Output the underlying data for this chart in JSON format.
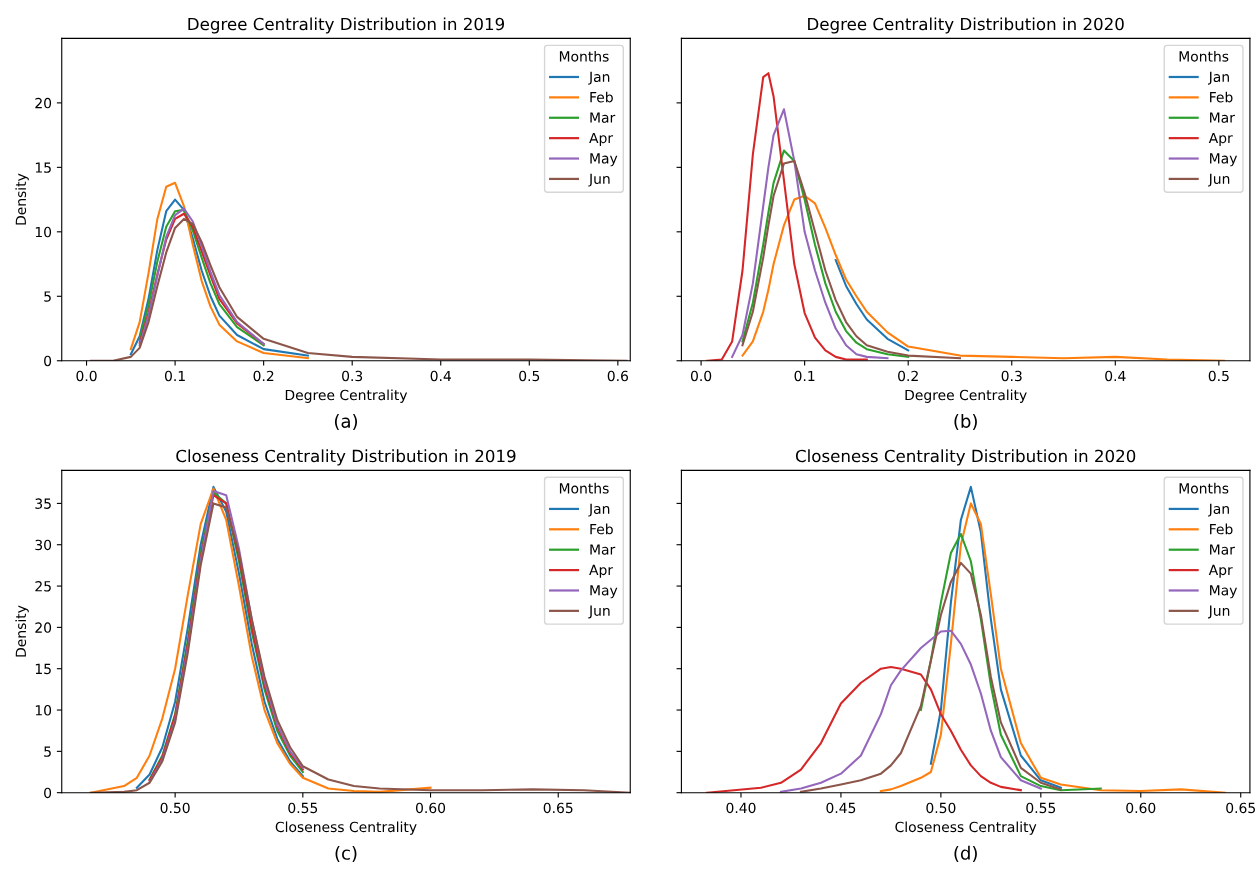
{
  "chart_data": [
    {
      "type": "line",
      "title": "Degree Centrality Distribution in 2019",
      "xlabel": "Degree Centrality",
      "ylabel": "Density",
      "legend_title": "Months",
      "legend": "top right",
      "grid": false,
      "annotations": [
        "(a)"
      ],
      "x": [
        0.005,
        0.03,
        0.05,
        0.06,
        0.07,
        0.08,
        0.09,
        0.1,
        0.11,
        0.12,
        0.13,
        0.14,
        0.15,
        0.17,
        0.2,
        0.25,
        0.3,
        0.4,
        0.5,
        0.61
      ],
      "xlim": [
        -0.028,
        0.614
      ],
      "xticks": [
        {
          "value": 0,
          "label": "0.0"
        },
        0.1,
        0.2,
        0.3,
        0.4,
        0.5,
        0.6
      ],
      "ylim": [
        0,
        25
      ],
      "yticks": [
        0,
        5,
        10,
        15,
        20
      ],
      "series": [
        {
          "name": "Jan",
          "color": "#1f77b4",
          "values": [
            null,
            null,
            0.5,
            1.9,
            4.8,
            8.6,
            11.6,
            12.5,
            11.7,
            9.5,
            7.0,
            5.0,
            3.5,
            2.0,
            0.9,
            0.4,
            null,
            null,
            null,
            null
          ]
        },
        {
          "name": "Feb",
          "color": "#ff7f0e",
          "values": [
            null,
            null,
            0.9,
            3.0,
            6.8,
            11.0,
            13.5,
            13.8,
            12.0,
            9.0,
            6.2,
            4.2,
            2.8,
            1.5,
            0.6,
            0.2,
            null,
            null,
            null,
            null
          ]
        },
        {
          "name": "Mar",
          "color": "#2ca02c",
          "values": [
            null,
            null,
            null,
            1.7,
            4.3,
            7.7,
            10.4,
            11.6,
            11.7,
            10.1,
            8.0,
            6.0,
            4.4,
            2.6,
            1.2,
            null,
            null,
            null,
            null,
            null
          ]
        },
        {
          "name": "Apr",
          "color": "#d62728",
          "values": [
            null,
            null,
            null,
            1.4,
            3.7,
            6.7,
            9.4,
            11.0,
            11.4,
            10.4,
            8.5,
            6.6,
            4.8,
            2.9,
            1.3,
            null,
            null,
            null,
            null,
            null
          ]
        },
        {
          "name": "May",
          "color": "#9467bd",
          "values": [
            null,
            null,
            null,
            1.2,
            3.5,
            6.6,
            9.6,
            11.3,
            11.8,
            10.8,
            8.9,
            6.9,
            5.1,
            3.0,
            1.3,
            null,
            null,
            null,
            null,
            null
          ]
        },
        {
          "name": "Jun",
          "color": "#8c564b",
          "values": [
            0,
            0,
            0.3,
            1.0,
            3.0,
            5.8,
            8.4,
            10.3,
            11.0,
            10.6,
            9.2,
            7.4,
            5.7,
            3.4,
            1.7,
            0.6,
            0.3,
            0.1,
            0.1,
            0
          ]
        }
      ]
    },
    {
      "type": "line",
      "title": "Degree Centrality Distribution in 2020",
      "xlabel": "Degree Centrality",
      "legend_title": "Months",
      "legend": "top right",
      "grid": false,
      "annotations": [
        "(b)"
      ],
      "tick_labels": "x",
      "x": [
        0.006,
        0.02,
        0.03,
        0.04,
        0.05,
        0.06,
        0.065,
        0.07,
        0.08,
        0.09,
        0.1,
        0.11,
        0.12,
        0.13,
        0.14,
        0.15,
        0.16,
        0.18,
        0.2,
        0.25,
        0.3,
        0.35,
        0.4,
        0.45,
        0.505
      ],
      "xlim": [
        -0.019,
        0.53
      ],
      "xticks": [
        {
          "value": 0,
          "label": "0.0"
        },
        0.1,
        0.2,
        0.3,
        0.4,
        0.5
      ],
      "ylim": [
        0,
        25
      ],
      "yticks": [
        0,
        5,
        10,
        15,
        20
      ],
      "series": [
        {
          "name": "Jan",
          "color": "#1f77b4",
          "values": [
            null,
            null,
            null,
            null,
            null,
            null,
            null,
            null,
            null,
            null,
            null,
            null,
            null,
            7.8,
            5.8,
            4.4,
            3.2,
            1.7,
            0.8,
            null,
            null,
            null,
            null,
            null,
            null
          ]
        },
        {
          "name": "Feb",
          "color": "#ff7f0e",
          "values": [
            null,
            null,
            null,
            0.4,
            1.5,
            3.8,
            5.5,
            7.5,
            10.5,
            12.5,
            12.8,
            12.2,
            10.3,
            8.2,
            6.3,
            5.0,
            3.8,
            2.2,
            1.1,
            0.4,
            0.3,
            0.2,
            0.3,
            0.1,
            0
          ]
        },
        {
          "name": "Mar",
          "color": "#2ca02c",
          "values": [
            null,
            null,
            null,
            1.5,
            4.5,
            9.0,
            11.5,
            13.8,
            16.3,
            15.5,
            12.5,
            9.0,
            6.0,
            3.8,
            2.3,
            1.4,
            0.9,
            0.5,
            0.3,
            null,
            null,
            null,
            null,
            null,
            null
          ]
        },
        {
          "name": "Apr",
          "color": "#d62728",
          "values": [
            0,
            0.1,
            1.5,
            7.0,
            16.0,
            22.0,
            22.3,
            20.5,
            14.0,
            7.5,
            3.7,
            1.8,
            0.8,
            0.3,
            0.1,
            0.1,
            0.1,
            null,
            null,
            null,
            null,
            null,
            null,
            null,
            null
          ]
        },
        {
          "name": "May",
          "color": "#9467bd",
          "values": [
            null,
            null,
            0.3,
            2.0,
            6.0,
            12.0,
            15.0,
            17.5,
            19.5,
            15.5,
            10.0,
            7.0,
            4.5,
            2.5,
            1.2,
            0.5,
            0.3,
            0.2,
            null,
            null,
            null,
            null,
            null,
            null,
            null
          ]
        },
        {
          "name": "Jun",
          "color": "#8c564b",
          "values": [
            null,
            null,
            null,
            1.2,
            3.8,
            8.0,
            10.5,
            12.8,
            15.3,
            15.5,
            13.0,
            10.0,
            7.0,
            4.7,
            3.0,
            1.9,
            1.2,
            0.7,
            0.4,
            0.2,
            null,
            null,
            null,
            null,
            null
          ]
        }
      ]
    },
    {
      "type": "line",
      "title": "Closeness Centrality Distribution in 2019",
      "xlabel": "Closeness Centrality",
      "ylabel": "Density",
      "legend_title": "Months",
      "legend": "top right",
      "grid": false,
      "annotations": [
        "(c)"
      ],
      "x": [
        0.467,
        0.48,
        0.485,
        0.49,
        0.495,
        0.5,
        0.505,
        0.51,
        0.515,
        0.52,
        0.525,
        0.53,
        0.535,
        0.54,
        0.545,
        0.55,
        0.56,
        0.57,
        0.58,
        0.6,
        0.62,
        0.64,
        0.66,
        0.678
      ],
      "xlim": [
        0.4556,
        0.6782
      ],
      "xticks": [
        {
          "value": 0.5,
          "label": "0.50"
        },
        {
          "value": 0.55,
          "label": "0.55"
        },
        {
          "value": 0.6,
          "label": "0.60"
        },
        {
          "value": 0.65,
          "label": "0.65"
        }
      ],
      "ylim": [
        0,
        39
      ],
      "yticks": [
        0,
        5,
        10,
        15,
        20,
        25,
        30,
        35
      ],
      "series": [
        {
          "name": "Jan",
          "color": "#1f77b4",
          "values": [
            null,
            null,
            0.6,
            2.2,
            5.5,
            11,
            20,
            30,
            37,
            34,
            26.5,
            18,
            11,
            6.5,
            3.8,
            2.0,
            null,
            null,
            null,
            null,
            null,
            null,
            null,
            null
          ]
        },
        {
          "name": "Feb",
          "color": "#ff7f0e",
          "values": [
            0,
            0.8,
            1.8,
            4.5,
            9,
            15,
            24,
            32.5,
            36.8,
            33,
            25,
            16.5,
            10,
            6,
            3.5,
            1.8,
            0.5,
            0.2,
            0.1,
            0.6,
            null,
            null,
            null,
            null
          ]
        },
        {
          "name": "Mar",
          "color": "#2ca02c",
          "values": [
            null,
            null,
            null,
            1.6,
            4.5,
            9.5,
            18.5,
            29,
            36.3,
            35,
            28,
            19.5,
            12.5,
            7.5,
            4.5,
            2.5,
            null,
            null,
            null,
            null,
            null,
            null,
            null,
            null
          ]
        },
        {
          "name": "Apr",
          "color": "#d62728",
          "values": [
            null,
            null,
            null,
            1.5,
            4.3,
            9.3,
            18,
            28.5,
            36,
            35,
            28.5,
            20,
            13,
            8,
            4.8,
            2.8,
            null,
            null,
            null,
            null,
            null,
            null,
            null,
            null
          ]
        },
        {
          "name": "May",
          "color": "#9467bd",
          "values": [
            null,
            null,
            null,
            1.3,
            4,
            8.8,
            17.5,
            28,
            36.5,
            36,
            29.5,
            21,
            13.5,
            8.2,
            5,
            3,
            null,
            null,
            null,
            null,
            null,
            null,
            null,
            null
          ]
        },
        {
          "name": "Jun",
          "color": "#8c564b",
          "values": [
            0,
            0.1,
            0.3,
            1.2,
            3.8,
            8.5,
            17,
            27.5,
            35,
            34.5,
            29,
            21,
            14,
            8.8,
            5.5,
            3.2,
            1.6,
            0.8,
            0.5,
            0.3,
            0.3,
            0.4,
            0.3,
            0
          ]
        }
      ]
    },
    {
      "type": "line",
      "title": "Closeness Centrality Distribution in 2020",
      "xlabel": "Closeness Centrality",
      "legend_title": "Months",
      "legend": "top right",
      "grid": false,
      "annotations": [
        "(d)"
      ],
      "tick_labels": "x",
      "x": [
        0.383,
        0.41,
        0.42,
        0.43,
        0.44,
        0.45,
        0.46,
        0.47,
        0.475,
        0.48,
        0.49,
        0.495,
        0.5,
        0.505,
        0.51,
        0.515,
        0.52,
        0.525,
        0.53,
        0.54,
        0.55,
        0.56,
        0.58,
        0.6,
        0.62,
        0.642
      ],
      "xlim": [
        0.3702,
        0.6546
      ],
      "xticks": [
        {
          "value": 0.4,
          "label": "0.40"
        },
        {
          "value": 0.45,
          "label": "0.45"
        },
        {
          "value": 0.5,
          "label": "0.50"
        },
        {
          "value": 0.55,
          "label": "0.55"
        },
        {
          "value": 0.6,
          "label": "0.60"
        },
        {
          "value": 0.65,
          "label": "0.65"
        }
      ],
      "ylim": [
        0,
        39
      ],
      "yticks": [
        0,
        5,
        10,
        15,
        20,
        25,
        30,
        35
      ],
      "series": [
        {
          "name": "Jan",
          "color": "#1f77b4",
          "values": [
            null,
            null,
            null,
            null,
            null,
            null,
            null,
            null,
            null,
            null,
            null,
            3.5,
            10,
            23,
            33,
            37,
            31.5,
            21,
            12.5,
            4.5,
            1.5,
            0.6,
            null,
            null,
            null,
            null
          ]
        },
        {
          "name": "Feb",
          "color": "#ff7f0e",
          "values": [
            null,
            null,
            null,
            null,
            null,
            null,
            null,
            0.2,
            0.4,
            0.8,
            1.8,
            2.5,
            7,
            18,
            30,
            35,
            32.5,
            24,
            15,
            6,
            1.8,
            1.0,
            0.3,
            0.2,
            0.4,
            0
          ]
        },
        {
          "name": "Mar",
          "color": "#2ca02c",
          "values": [
            null,
            null,
            null,
            null,
            null,
            null,
            null,
            null,
            null,
            null,
            10,
            16,
            23,
            29,
            31.3,
            28,
            21,
            13,
            7,
            2,
            0.8,
            0.3,
            0.5,
            null,
            null,
            null
          ]
        },
        {
          "name": "Apr",
          "color": "#d62728",
          "values": [
            0,
            0.6,
            1.2,
            2.8,
            6,
            10.8,
            13.3,
            15.0,
            15.2,
            15.0,
            14.3,
            12.5,
            9.5,
            7.5,
            5.2,
            3.3,
            2.0,
            1.2,
            0.7,
            0.3,
            null,
            null,
            null,
            null,
            null,
            null
          ]
        },
        {
          "name": "May",
          "color": "#9467bd",
          "values": [
            null,
            null,
            0.1,
            0.5,
            1.2,
            2.3,
            4.5,
            9.5,
            13,
            14.8,
            17.5,
            18.5,
            19.5,
            19.6,
            18,
            15.5,
            12,
            7.5,
            4.3,
            1.5,
            0.5,
            null,
            null,
            null,
            null,
            null
          ]
        },
        {
          "name": "Jun",
          "color": "#8c564b",
          "values": [
            null,
            null,
            null,
            0.1,
            0.5,
            1.0,
            1.5,
            2.3,
            3.3,
            4.8,
            10.5,
            16,
            21.5,
            25.5,
            27.8,
            26.5,
            21.5,
            14,
            8.5,
            3,
            1.2,
            0.4,
            null,
            null,
            null,
            null
          ]
        }
      ]
    }
  ]
}
